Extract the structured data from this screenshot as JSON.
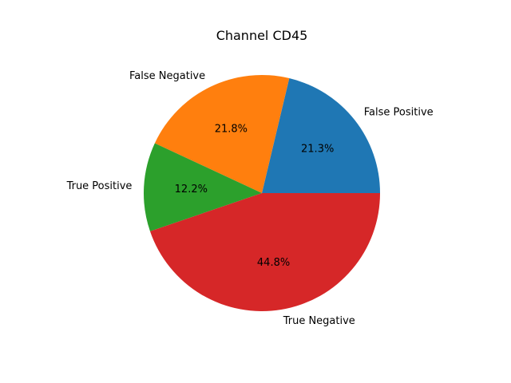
{
  "chart_data": {
    "type": "pie",
    "title": "Channel CD45",
    "categories": [
      "False Positive",
      "False Negative",
      "True Positive",
      "True Negative"
    ],
    "values": [
      21.3,
      21.8,
      12.2,
      44.8
    ],
    "percent_labels": [
      "21.3%",
      "21.8%",
      "12.2%",
      "44.8%"
    ],
    "colors": [
      "#1f77b4",
      "#ff7f0e",
      "#2ca02c",
      "#d62728"
    ],
    "start_angle_deg": 0,
    "direction": "counterclockwise",
    "legend": "none"
  }
}
